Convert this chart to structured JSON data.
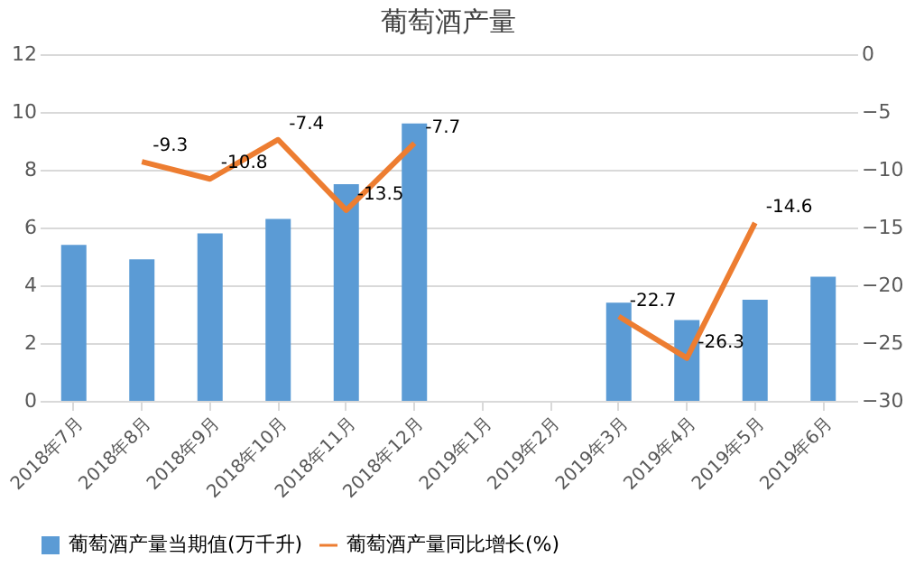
{
  "chart_data": {
    "type": "bar",
    "title": "葡萄酒产量",
    "categories": [
      "2018年7月",
      "2018年8月",
      "2018年9月",
      "2018年10月",
      "2018年11月",
      "2018年12月",
      "2019年1月",
      "2019年2月",
      "2019年3月",
      "2019年4月",
      "2019年5月",
      "2019年6月"
    ],
    "series": [
      {
        "name": "葡萄酒产量当期值(万千升)",
        "color": "#5b9bd5",
        "values": [
          5.4,
          4.9,
          5.8,
          6.3,
          7.5,
          9.6,
          null,
          null,
          3.4,
          2.8,
          3.5,
          4.3
        ]
      },
      {
        "name": "葡萄酒产量同比增长(%)",
        "type": "line",
        "axis": "y2",
        "color": "#ed7d31",
        "data_labels": true,
        "values": [
          null,
          -9.3,
          -10.8,
          -7.4,
          -13.5,
          -7.7,
          null,
          null,
          -22.7,
          -26.3,
          -14.6,
          null
        ]
      }
    ],
    "ylim": [
      0,
      12
    ],
    "yticks": [
      0,
      2,
      4,
      6,
      8,
      10,
      12
    ],
    "y2lim": [
      -30,
      0
    ],
    "y2ticks": [
      -30,
      -25,
      -20,
      -15,
      -10,
      -5,
      0
    ],
    "grid": "y",
    "legend": "bottom"
  }
}
